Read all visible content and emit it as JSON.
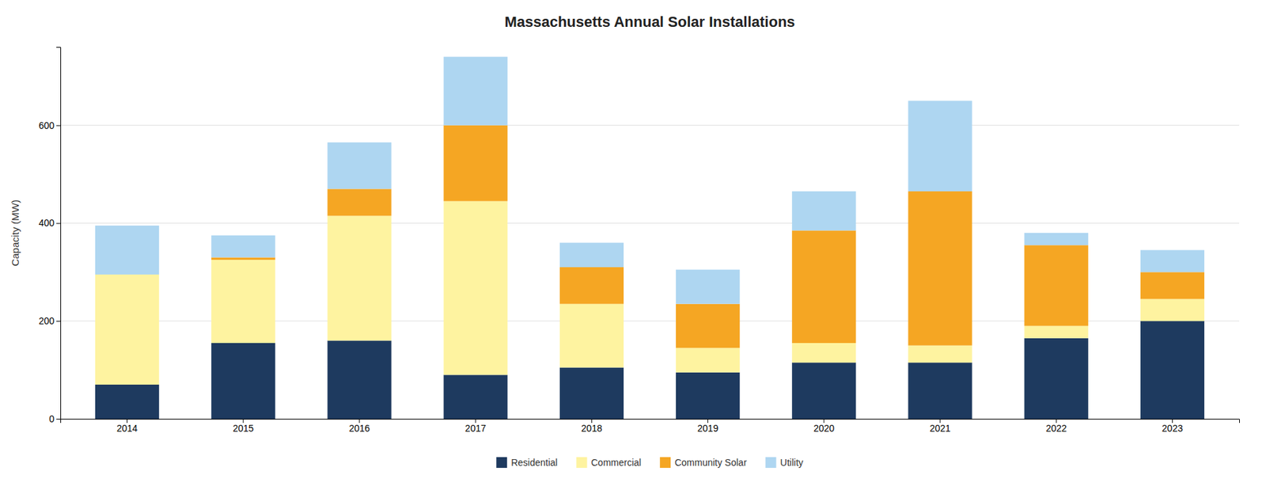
{
  "chart_data": {
    "type": "bar",
    "stacked": true,
    "title": "Massachusetts Annual Solar Installations",
    "ylabel": "Capacity (MW)",
    "categories": [
      "2014",
      "2015",
      "2016",
      "2017",
      "2018",
      "2019",
      "2020",
      "2021",
      "2022",
      "2023"
    ],
    "series": [
      {
        "name": "Residential",
        "color": "#1e3a5f",
        "values": [
          70,
          155,
          160,
          90,
          105,
          95,
          115,
          115,
          165,
          200
        ]
      },
      {
        "name": "Commercial",
        "color": "#fef3a0",
        "values": [
          225,
          170,
          255,
          355,
          130,
          50,
          40,
          35,
          25,
          45
        ]
      },
      {
        "name": "Community Solar",
        "color": "#f5a623",
        "values": [
          0,
          5,
          55,
          155,
          75,
          90,
          230,
          315,
          165,
          55
        ]
      },
      {
        "name": "Utility",
        "color": "#aed6f1",
        "values": [
          100,
          45,
          95,
          140,
          50,
          70,
          80,
          185,
          25,
          45
        ]
      }
    ],
    "ylim": [
      0,
      760
    ],
    "yticks": [
      0,
      200,
      400,
      600
    ],
    "grid": true,
    "legend": "bottom"
  }
}
